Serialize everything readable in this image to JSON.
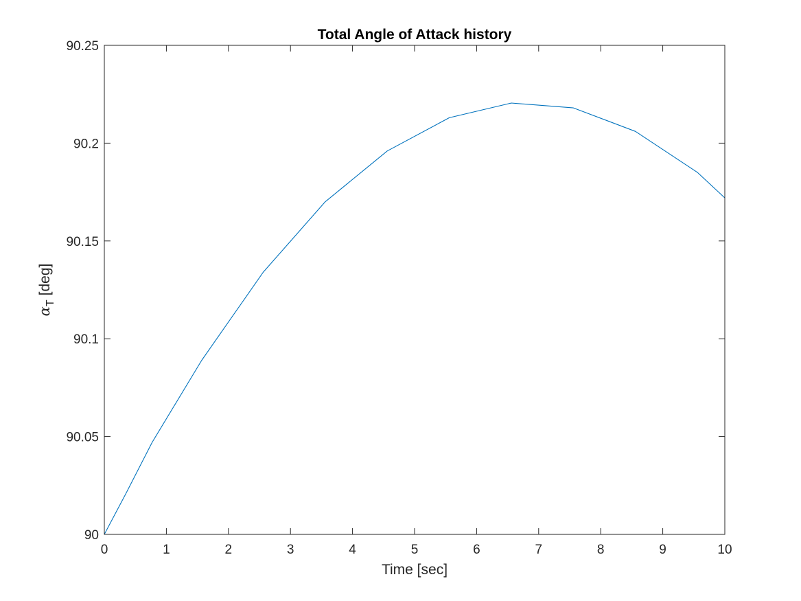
{
  "chart_data": {
    "type": "line",
    "title": "Total Angle of Attack history",
    "xlabel": "Time [sec]",
    "ylabel": {
      "symbol": "α",
      "subscript": "T",
      "unit": "[deg]"
    },
    "xlim": [
      0,
      10
    ],
    "ylim": [
      90,
      90.25
    ],
    "xticks": [
      "0",
      "1",
      "2",
      "3",
      "4",
      "5",
      "6",
      "7",
      "8",
      "9",
      "10"
    ],
    "yticks": [
      "90",
      "90.05",
      "90.1",
      "90.15",
      "90.2",
      "90.25"
    ],
    "grid": false,
    "series": [
      {
        "color": "#0072BD",
        "x": [
          0,
          0.35,
          0.77,
          1.57,
          2.56,
          3.56,
          4.56,
          5.56,
          6.56,
          7.56,
          8.56,
          9.56,
          10
        ],
        "y": [
          90.0,
          90.021,
          90.047,
          90.089,
          90.134,
          90.17,
          90.196,
          90.213,
          90.2205,
          90.218,
          90.206,
          90.185,
          90.172
        ]
      }
    ]
  }
}
